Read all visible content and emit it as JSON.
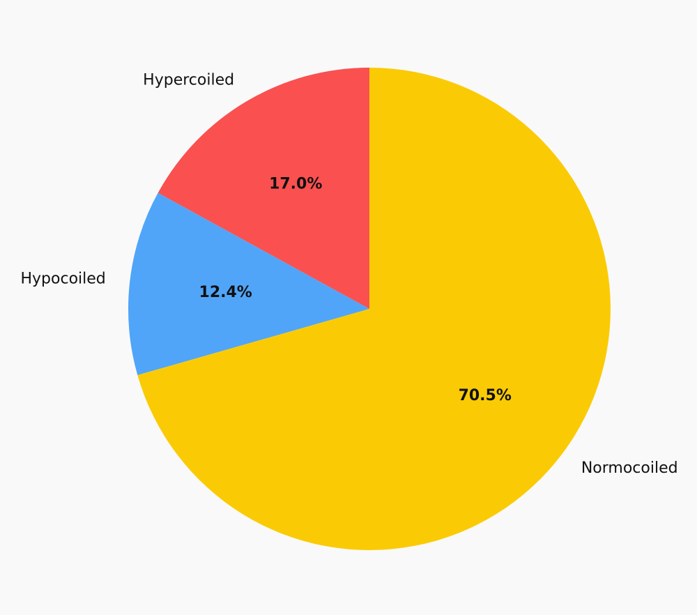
{
  "chart_data": {
    "type": "pie",
    "title": "",
    "start_angle_deg": 90,
    "direction": "counterclockwise",
    "slices": [
      {
        "label": "Hypercoiled",
        "value": 17.0,
        "pct_label": "17.0%",
        "color": "#fa5050"
      },
      {
        "label": "Hypocoiled",
        "value": 12.4,
        "pct_label": "12.4%",
        "color": "#50a5f8"
      },
      {
        "label": "Normocoiled",
        "value": 70.5,
        "pct_label": "70.5%",
        "color": "#facb05"
      }
    ]
  }
}
